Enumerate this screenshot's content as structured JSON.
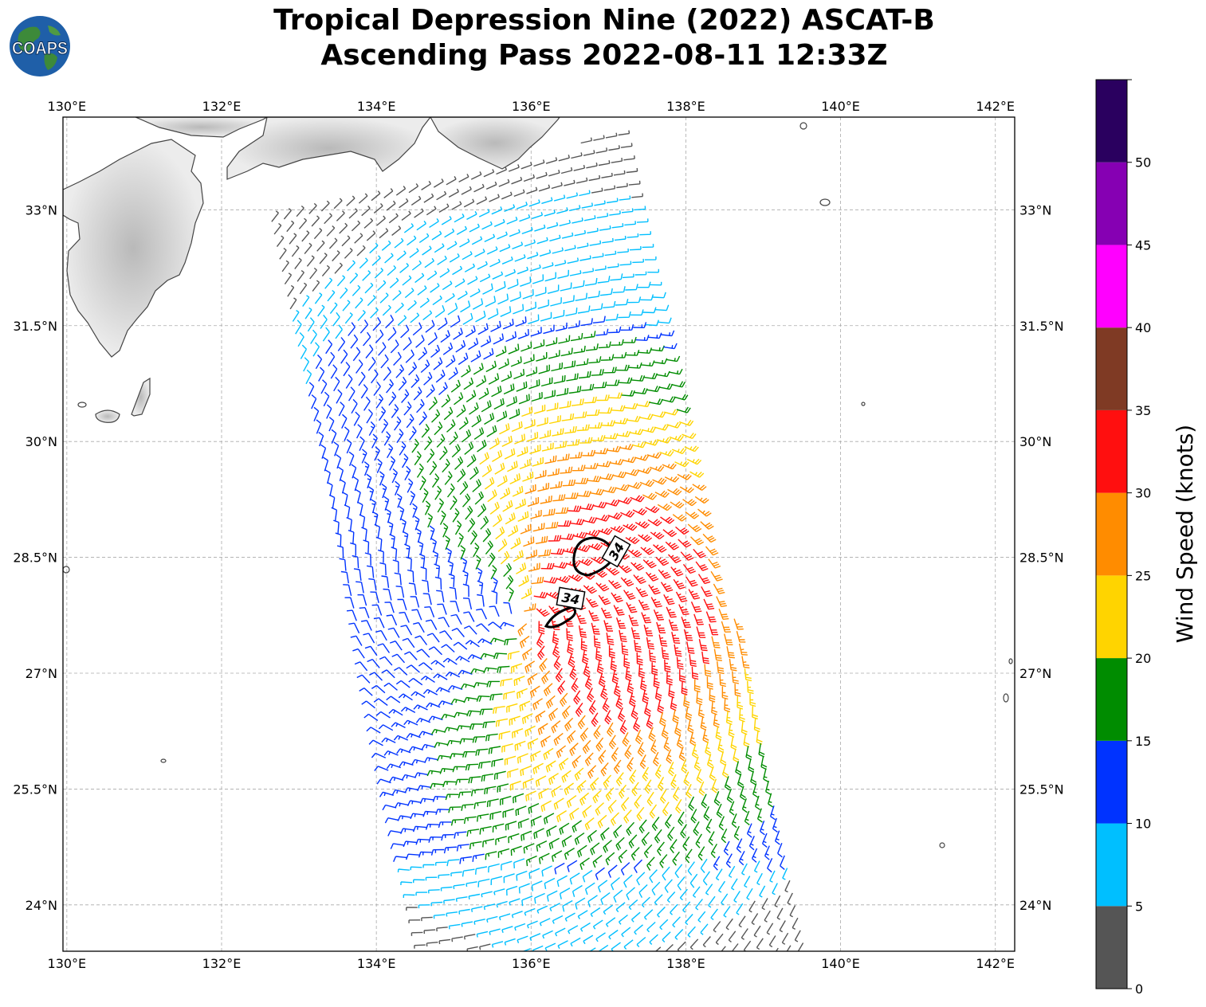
{
  "title": {
    "line1": "Tropical Depression Nine (2022) ASCAT-B",
    "line2": "Ascending Pass 2022-08-11 12:33Z"
  },
  "logo": {
    "text": "COAPS",
    "icon": "globe-logo-icon"
  },
  "map": {
    "lon_range": [
      129.95,
      142.25
    ],
    "lat_range": [
      23.4,
      34.2
    ],
    "lon_ticks": [
      {
        "value": 130,
        "label": "130°E"
      },
      {
        "value": 132,
        "label": "132°E"
      },
      {
        "value": 134,
        "label": "134°E"
      },
      {
        "value": 136,
        "label": "136°E"
      },
      {
        "value": 138,
        "label": "138°E"
      },
      {
        "value": 140,
        "label": "140°E"
      },
      {
        "value": 142,
        "label": "142°E"
      }
    ],
    "lat_ticks": [
      {
        "value": 33,
        "label": "33°N"
      },
      {
        "value": 31.5,
        "label": "31.5°N"
      },
      {
        "value": 30,
        "label": "30°N"
      },
      {
        "value": 28.5,
        "label": "28.5°N"
      },
      {
        "value": 27,
        "label": "27°N"
      },
      {
        "value": 25.5,
        "label": "25.5°N"
      },
      {
        "value": 24,
        "label": "24°N"
      }
    ],
    "grid": true,
    "wind_barbs": "ASCAT-B ascending swath, cyclonic circulation centered near 135.9°E 27.7°N",
    "contour": {
      "label": "34",
      "color": "#000000"
    }
  },
  "colorbar": {
    "label": "Wind Speed (knots)",
    "ticks": [
      "0",
      "5",
      "10",
      "15",
      "20",
      "25",
      "30",
      "35",
      "40",
      "45",
      "50"
    ],
    "bins": [
      {
        "min": 0,
        "max": 5,
        "color": "#555555"
      },
      {
        "min": 5,
        "max": 10,
        "color": "#00bfff"
      },
      {
        "min": 10,
        "max": 15,
        "color": "#0033ff"
      },
      {
        "min": 15,
        "max": 20,
        "color": "#008c00"
      },
      {
        "min": 20,
        "max": 25,
        "color": "#ffd400"
      },
      {
        "min": 25,
        "max": 30,
        "color": "#ff8c00"
      },
      {
        "min": 30,
        "max": 35,
        "color": "#ff0f0f"
      },
      {
        "min": 35,
        "max": 40,
        "color": "#7f3a24"
      },
      {
        "min": 40,
        "max": 45,
        "color": "#ff00ff"
      },
      {
        "min": 45,
        "max": 50,
        "color": "#8600b3"
      },
      {
        "min": 50,
        "max": 55,
        "color": "#2a005f"
      }
    ]
  }
}
